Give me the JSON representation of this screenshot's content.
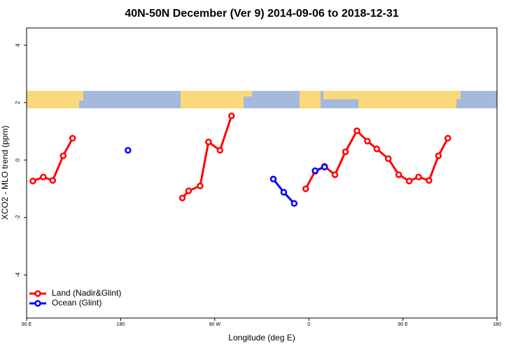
{
  "chart_data": {
    "type": "line",
    "title": "40N-50N December (Ver 9)   2014-09-06 to 2018-12-31",
    "x_label": "Longitude (deg E)",
    "y_label": "XCO2 - MLO trend (ppm)",
    "xlim": [
      90,
      540
    ],
    "xticks": [
      {
        "value": 90,
        "label": "90 E"
      },
      {
        "value": 180,
        "label": "180"
      },
      {
        "value": 270,
        "label": "90 W"
      },
      {
        "value": 360,
        "label": "0"
      },
      {
        "value": 450,
        "label": "90 E"
      },
      {
        "value": 540,
        "label": "180"
      }
    ],
    "ylim": [
      -5.5,
      4.6
    ],
    "yticks": [
      -4,
      -2,
      0,
      2,
      4
    ],
    "legend": "bottom-left",
    "series": [
      {
        "name": "Land (Nadir&Glint)",
        "color": "#ff0000",
        "x": [
          96,
          106,
          115,
          125,
          134,
          null,
          239,
          245,
          256,
          264,
          275,
          286,
          null,
          357,
          366,
          375,
          385,
          395,
          406,
          416,
          425,
          436,
          446,
          456,
          465,
          475,
          484,
          493
        ],
        "values": [
          -0.73,
          -0.59,
          -0.71,
          0.15,
          0.76,
          null,
          -1.32,
          -1.07,
          -0.9,
          0.63,
          0.34,
          1.54,
          null,
          -1.0,
          -0.39,
          -0.22,
          -0.51,
          0.29,
          1.02,
          0.66,
          0.39,
          0.05,
          -0.51,
          -0.73,
          -0.59,
          -0.71,
          0.15,
          0.76
        ]
      },
      {
        "name": "Ocean (Glint)",
        "color": "#0000ff",
        "x": [
          187,
          null,
          326,
          336,
          346,
          null,
          366,
          375
        ],
        "values": [
          0.34,
          null,
          -0.66,
          -1.12,
          -1.51,
          null,
          -0.37,
          -0.24
        ]
      }
    ]
  }
}
